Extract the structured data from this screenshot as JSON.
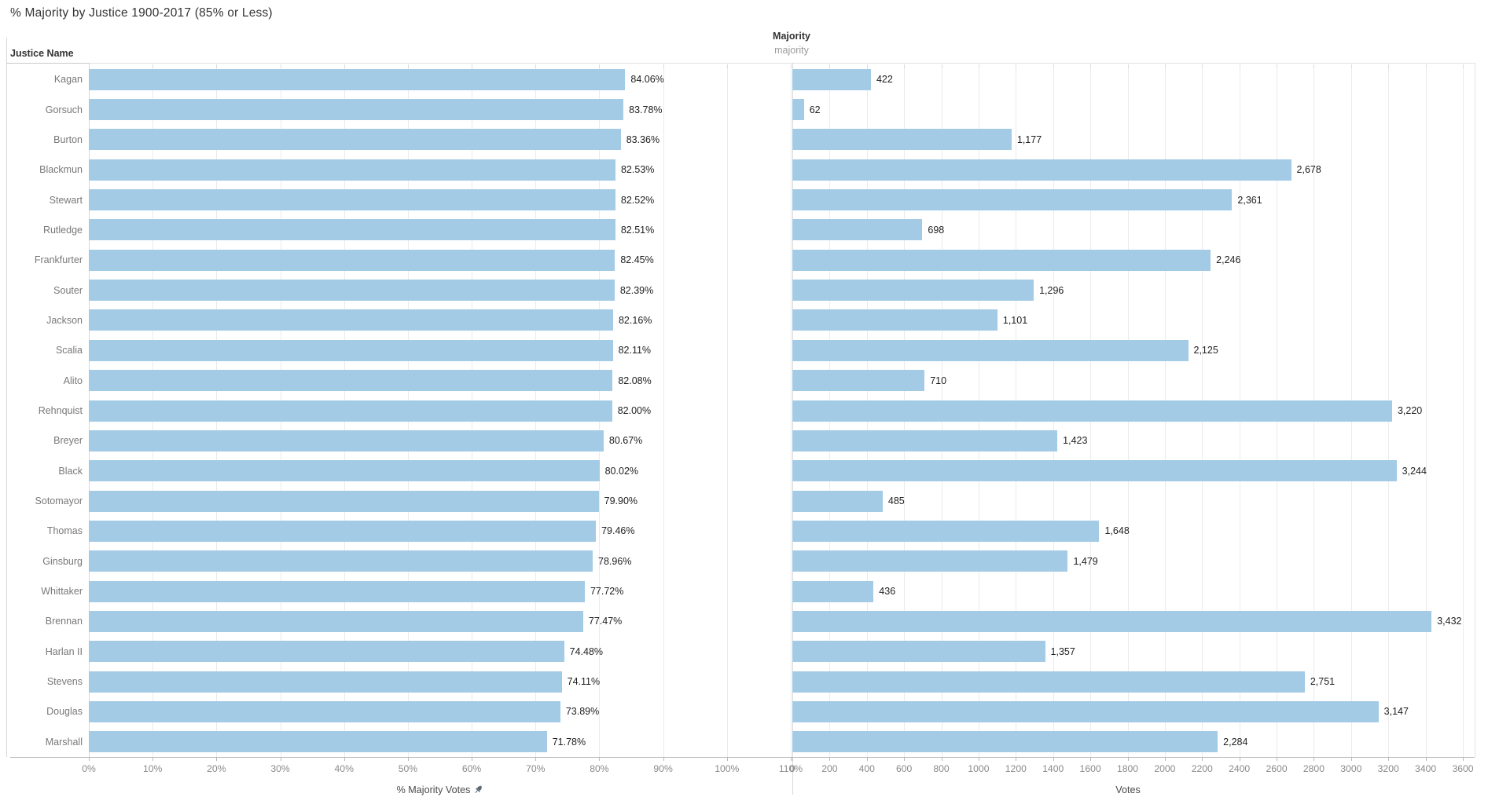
{
  "title": "% Majority by Justice 1900-2017 (85% or Less)",
  "row_header": "Justice Name",
  "measure_header": {
    "label": "Majority",
    "sub_label": "majority"
  },
  "colors": {
    "bar": "#a3cbe6",
    "title_text": "#333333",
    "row_label_text": "#787878",
    "value_label_text": "#1e1e1e",
    "axis_text": "#8a8a8a"
  },
  "chart_data": [
    {
      "type": "bar",
      "orientation": "horizontal",
      "title": "% Majority by Justice 1900-2017 (85% or Less)",
      "categories": [
        "Kagan",
        "Gorsuch",
        "Burton",
        "Blackmun",
        "Stewart",
        "Rutledge",
        "Frankfurter",
        "Souter",
        "Jackson",
        "Scalia",
        "Alito",
        "Rehnquist",
        "Breyer",
        "Black",
        "Sotomayor",
        "Thomas",
        "Ginsburg",
        "Whittaker",
        "Brennan",
        "Harlan II",
        "Stevens",
        "Douglas",
        "Marshall"
      ],
      "values": [
        84.06,
        83.78,
        83.36,
        82.53,
        82.52,
        82.51,
        82.45,
        82.39,
        82.16,
        82.11,
        82.08,
        82.0,
        80.67,
        80.02,
        79.9,
        79.46,
        78.96,
        77.72,
        77.47,
        74.48,
        74.11,
        73.89,
        71.78
      ],
      "value_labels": [
        "84.06%",
        "83.78%",
        "83.36%",
        "82.53%",
        "82.52%",
        "82.51%",
        "82.45%",
        "82.39%",
        "82.16%",
        "82.11%",
        "82.08%",
        "82.00%",
        "80.67%",
        "80.02%",
        "79.90%",
        "79.46%",
        "78.96%",
        "77.72%",
        "77.47%",
        "74.48%",
        "74.11%",
        "73.89%",
        "71.78%"
      ],
      "xlabel": "% Majority Votes",
      "xlim": [
        0,
        110
      ],
      "xticks": [
        "0%",
        "10%",
        "20%",
        "30%",
        "40%",
        "50%",
        "60%",
        "70%",
        "80%",
        "90%",
        "100%",
        "110%"
      ],
      "grid": true,
      "axis_pinned": true,
      "legend": "none"
    },
    {
      "type": "bar",
      "orientation": "horizontal",
      "title": "Majority",
      "subtitle": "majority",
      "categories": [
        "Kagan",
        "Gorsuch",
        "Burton",
        "Blackmun",
        "Stewart",
        "Rutledge",
        "Frankfurter",
        "Souter",
        "Jackson",
        "Scalia",
        "Alito",
        "Rehnquist",
        "Breyer",
        "Black",
        "Sotomayor",
        "Thomas",
        "Ginsburg",
        "Whittaker",
        "Brennan",
        "Harlan II",
        "Stevens",
        "Douglas",
        "Marshall"
      ],
      "values": [
        422,
        62,
        1177,
        2678,
        2361,
        698,
        2246,
        1296,
        1101,
        2125,
        710,
        3220,
        1423,
        3244,
        485,
        1648,
        1479,
        436,
        3432,
        1357,
        2751,
        3147,
        2284
      ],
      "value_labels": [
        "422",
        "62",
        "1,177",
        "2,678",
        "2,361",
        "698",
        "2,246",
        "1,296",
        "1,101",
        "2,125",
        "710",
        "3,220",
        "1,423",
        "3,244",
        "485",
        "1,648",
        "1,479",
        "436",
        "3,432",
        "1,357",
        "2,751",
        "3,147",
        "2,284"
      ],
      "xlabel": "Votes",
      "xlim": [
        0,
        3600
      ],
      "xticks": [
        "0",
        "200",
        "400",
        "600",
        "800",
        "1000",
        "1200",
        "1400",
        "1600",
        "1800",
        "2000",
        "2200",
        "2400",
        "2600",
        "2800",
        "3000",
        "3200",
        "3400",
        "3600"
      ],
      "grid": true,
      "legend": "none"
    }
  ]
}
